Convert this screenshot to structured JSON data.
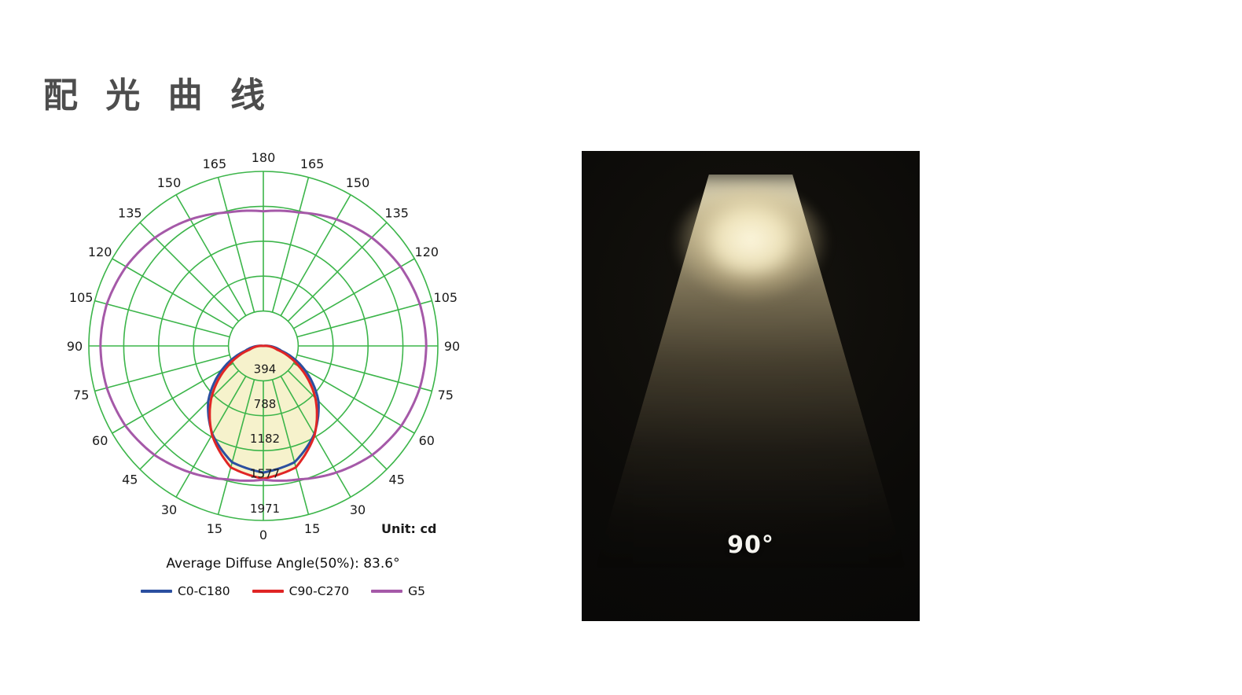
{
  "page": {
    "title": "配 光 曲 线"
  },
  "polar_chart": {
    "unit_label": "Unit: cd",
    "caption": "Average Diffuse Angle(50%): 83.6°",
    "legend": [
      {
        "label": "C0-C180",
        "color": "#2b4fa0"
      },
      {
        "label": "C90-C270",
        "color": "#e02525"
      },
      {
        "label": "G5",
        "color": "#a559a8"
      }
    ]
  },
  "beam_photo": {
    "angle_label": "90°"
  },
  "chart_data": {
    "type": "polar",
    "title": "配光曲线",
    "unit": "cd",
    "grid_color": "#3cb54a",
    "grid_rings": 5,
    "spoke_step_deg": 15,
    "angle_labels_deg": [
      0,
      15,
      30,
      45,
      60,
      75,
      90,
      105,
      120,
      135,
      150,
      165,
      180
    ],
    "radial_ticks_cd": [
      394,
      788,
      1182,
      1577,
      1971
    ],
    "r_max_cd": 1971,
    "average_diffuse_angle_50pct_deg": 83.6,
    "series": [
      {
        "name": "C0-C180",
        "color": "#2b4fa0",
        "fill": "#f6f2cc",
        "angles_deg": [
          0,
          15,
          30,
          45,
          60,
          75,
          90,
          97
        ],
        "values_cd": [
          1430,
          1360,
          1150,
          880,
          540,
          210,
          60,
          0
        ]
      },
      {
        "name": "C90-C270",
        "color": "#e02525",
        "fill": "#f6f2cc",
        "angles_deg": [
          0,
          15,
          30,
          45,
          60,
          75,
          90,
          95
        ],
        "values_cd": [
          1500,
          1420,
          1160,
          830,
          470,
          160,
          40,
          0
        ]
      },
      {
        "name": "G5",
        "color": "#a559a8",
        "fill": "none",
        "angles_deg": [
          0,
          15,
          30,
          45,
          60,
          75,
          90,
          105,
          120,
          135,
          150,
          165,
          180
        ],
        "values_cd": [
          1510,
          1560,
          1650,
          1740,
          1800,
          1830,
          1840,
          1830,
          1790,
          1730,
          1650,
          1560,
          1520
        ]
      }
    ]
  }
}
